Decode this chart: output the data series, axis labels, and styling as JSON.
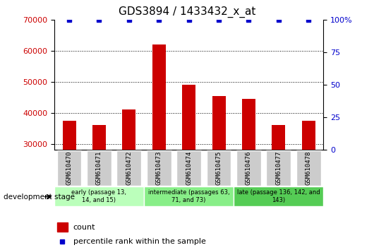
{
  "title": "GDS3894 / 1433432_x_at",
  "samples": [
    "GSM610470",
    "GSM610471",
    "GSM610472",
    "GSM610473",
    "GSM610474",
    "GSM610475",
    "GSM610476",
    "GSM610477",
    "GSM610478"
  ],
  "counts": [
    37500,
    36000,
    41000,
    62000,
    49000,
    45500,
    44500,
    36000,
    37500
  ],
  "blue_dots": [
    1,
    1,
    1,
    1,
    1,
    1,
    1,
    1,
    1
  ],
  "ylim_left": [
    28000,
    70000
  ],
  "ylim_right": [
    0,
    100
  ],
  "yticks_left": [
    30000,
    40000,
    50000,
    60000,
    70000
  ],
  "yticks_right": [
    0,
    25,
    50,
    75,
    100
  ],
  "bar_color": "#cc0000",
  "dot_color": "#0000cc",
  "groups": [
    {
      "label": "early (passage 13,\n14, and 15)",
      "start": 0,
      "end": 3,
      "color": "#bbffbb"
    },
    {
      "label": "intermediate (passages 63,\n71, and 73)",
      "start": 3,
      "end": 6,
      "color": "#88ee88"
    },
    {
      "label": "late (passage 136, 142, and\n143)",
      "start": 6,
      "end": 9,
      "color": "#55cc55"
    }
  ],
  "legend_count_label": "count",
  "legend_pct_label": "percentile rank within the sample",
  "dev_stage_label": "development stage",
  "tick_label_color_left": "#cc0000",
  "tick_label_color_right": "#0000cc",
  "bar_bottom": 28000,
  "tick_bg_color": "#cccccc",
  "right_axis_label_suffix": "%"
}
